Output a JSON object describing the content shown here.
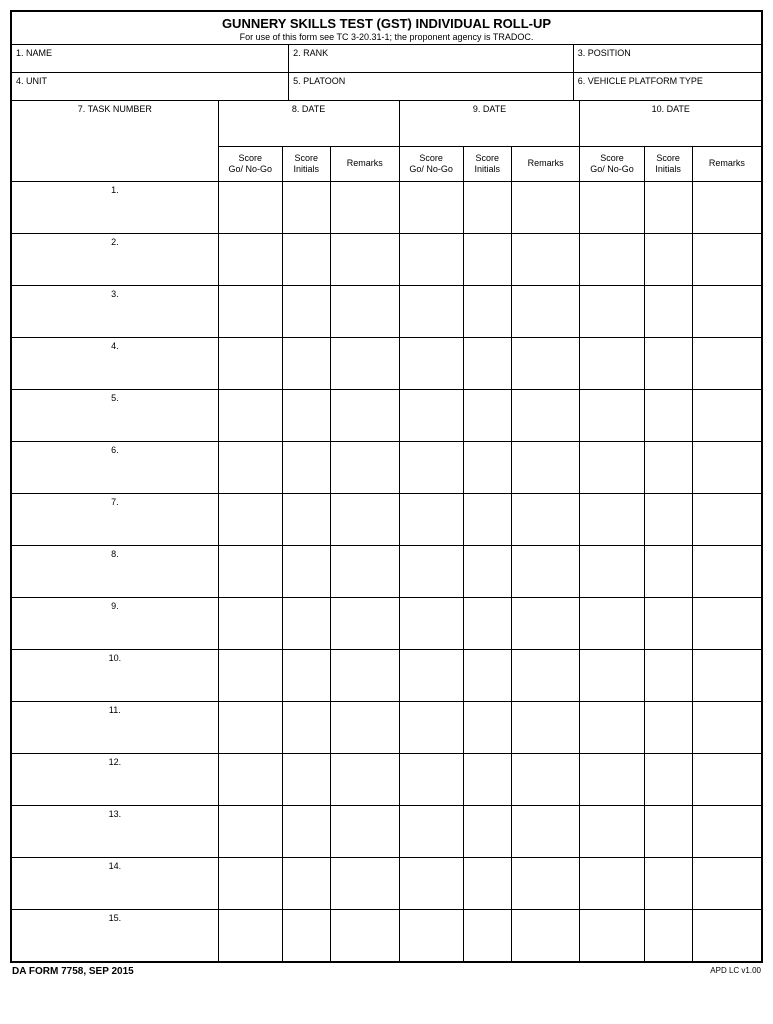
{
  "header": {
    "title": "GUNNERY SKILLS TEST (GST) INDIVIDUAL ROLL-UP",
    "subtitle": "For use of this form see TC 3-20.31-1;  the proponent agency is TRADOC."
  },
  "fields": {
    "name": "1. NAME",
    "rank": "2. RANK",
    "position": "3. POSITION",
    "unit": "4. UNIT",
    "platoon": "5. PLATOON",
    "vehicle": "6. VEHICLE PLATFORM TYPE",
    "task_number": "7. TASK NUMBER",
    "date_8": "8. DATE",
    "date_9": "9. DATE",
    "date_10": "10. DATE"
  },
  "sub_headers": {
    "score": "Score\nGo/ No-Go",
    "initials": "Score\nInitials",
    "remarks": "Remarks"
  },
  "rows": [
    "1.",
    "2.",
    "3.",
    "4.",
    "5.",
    "6.",
    "7.",
    "8.",
    "9.",
    "10.",
    "11.",
    "12.",
    "13.",
    "14.",
    "15."
  ],
  "footer": {
    "left": "DA FORM 7758, SEP 2015",
    "right": "APD LC v1.00"
  }
}
